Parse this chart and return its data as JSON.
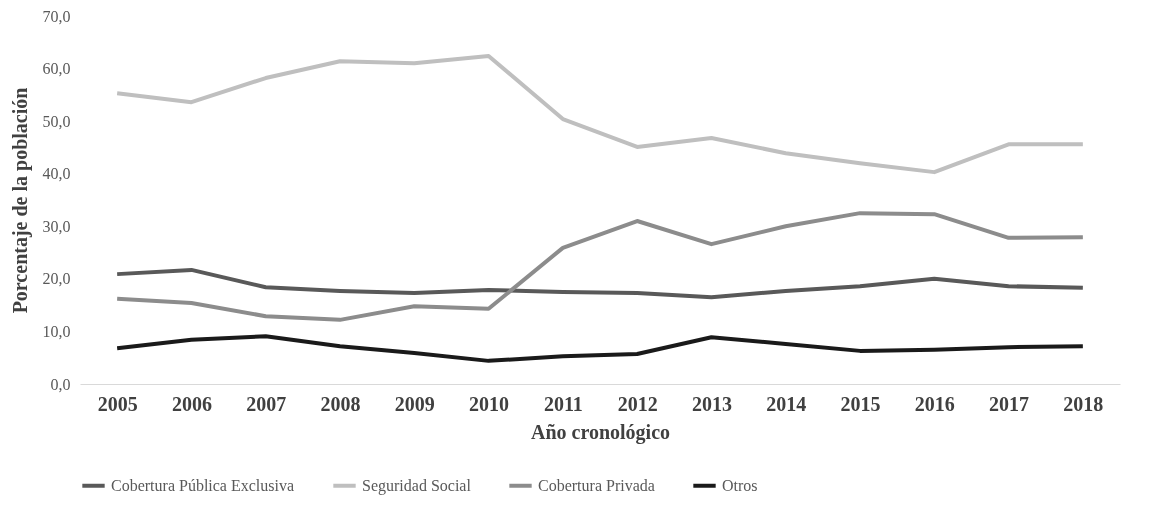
{
  "chart_data": {
    "type": "line",
    "xlabel": "Año cronológico",
    "ylabel": "Porcentaje de la población",
    "categories": [
      "2005",
      "2006",
      "2007",
      "2008",
      "2009",
      "2010",
      "2011",
      "2012",
      "2013",
      "2014",
      "2015",
      "2016",
      "2017",
      "2018"
    ],
    "series": [
      {
        "name": "Cobertura Pública Exclusiva",
        "color": "#595959",
        "values": [
          20.9,
          21.7,
          18.4,
          17.7,
          17.3,
          17.9,
          17.5,
          17.3,
          16.5,
          17.7,
          18.6,
          20.0,
          18.6,
          18.3
        ]
      },
      {
        "name": "Seguridad Social",
        "color": "#bfbfbf",
        "values": [
          55.3,
          53.6,
          58.2,
          61.4,
          61.0,
          62.4,
          50.4,
          45.1,
          46.8,
          43.9,
          42.0,
          40.3,
          45.6,
          45.6
        ]
      },
      {
        "name": "Cobertura Privada",
        "color": "#8c8c8c",
        "values": [
          16.2,
          15.4,
          12.9,
          12.2,
          14.8,
          14.3,
          25.9,
          31.0,
          26.6,
          30.0,
          32.5,
          32.3,
          27.8,
          27.9
        ]
      },
      {
        "name": "Otros",
        "color": "#1a1a1a",
        "values": [
          6.8,
          8.4,
          9.1,
          7.2,
          5.9,
          4.4,
          5.3,
          5.7,
          8.9,
          7.6,
          6.3,
          6.5,
          7.0,
          7.2
        ]
      }
    ],
    "ylim": [
      0,
      70
    ],
    "yticks": [
      {
        "value": 0,
        "label": "0,0"
      },
      {
        "value": 10,
        "label": "10,0"
      },
      {
        "value": 20,
        "label": "20,0"
      },
      {
        "value": 30,
        "label": "30,0"
      },
      {
        "value": 40,
        "label": "40,0"
      },
      {
        "value": 50,
        "label": "50,0"
      },
      {
        "value": 60,
        "label": "60,0"
      },
      {
        "value": 70,
        "label": "70,0"
      }
    ],
    "grid": false,
    "legend": "bottom",
    "marker": "none",
    "line_style": "solid"
  }
}
